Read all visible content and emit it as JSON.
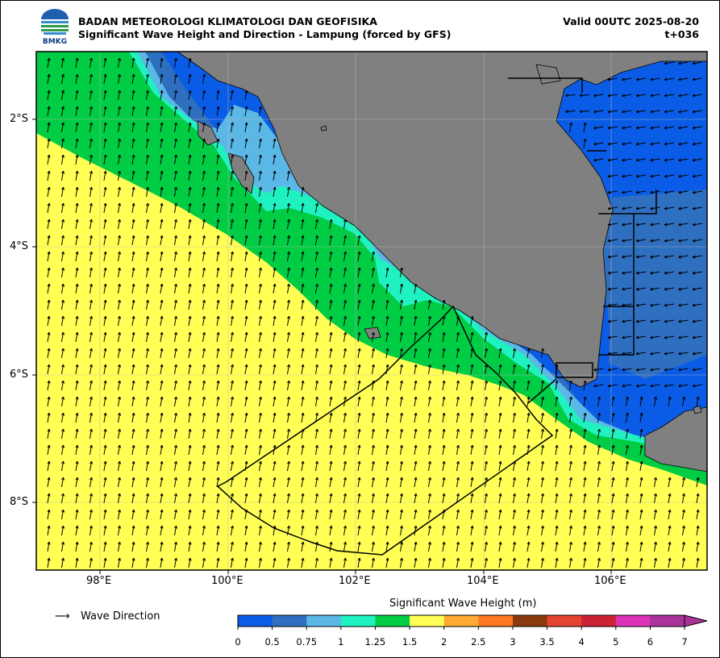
{
  "header": {
    "org": "BADAN METEOROLOGI KLIMATOLOGI DAN GEOFISIKA",
    "subtitle": "Significant Wave Height and Direction - Lampung (forced by GFS)",
    "valid": "Valid 00UTC 2025-08-20",
    "lead": "t+036",
    "logo_text": "BMKG"
  },
  "axes": {
    "lat_labels": [
      "2°S",
      "4°S",
      "6°S",
      "8°S"
    ],
    "lon_labels": [
      "98°E",
      "100°E",
      "102°E",
      "104°E",
      "106°E"
    ],
    "lat_range": [
      -9.0,
      -1.0
    ],
    "lon_range": [
      97.0,
      107.5
    ],
    "grid": true
  },
  "legend": {
    "arrow_symbol": "⟶",
    "label": "Wave Direction"
  },
  "colorbar": {
    "title": "Significant Wave Height (m)",
    "ticks": [
      "0",
      "0.5",
      "0.75",
      "1",
      "1.25",
      "1.5",
      "2",
      "2.5",
      "3",
      "3.5",
      "4",
      "5",
      "6",
      "7"
    ],
    "colors": [
      "#0a5ce6",
      "#2f6fc0",
      "#5bb8e6",
      "#1ff2c0",
      "#00cc44",
      "#ffff55",
      "#ffaa33",
      "#ff7722",
      "#8b3a0e",
      "#e64433",
      "#cc2233",
      "#dd33bb",
      "#aa3399"
    ],
    "extend_color": "#aa3399"
  },
  "map_colors": {
    "land": "#808080",
    "h_0_05": "#0a5ce6",
    "h_05_075": "#2f6fc0",
    "h_075_1": "#5bb8e6",
    "h_1_125": "#1ff2c0",
    "h_125_15": "#00cc44",
    "h_15_2": "#ffff55"
  }
}
